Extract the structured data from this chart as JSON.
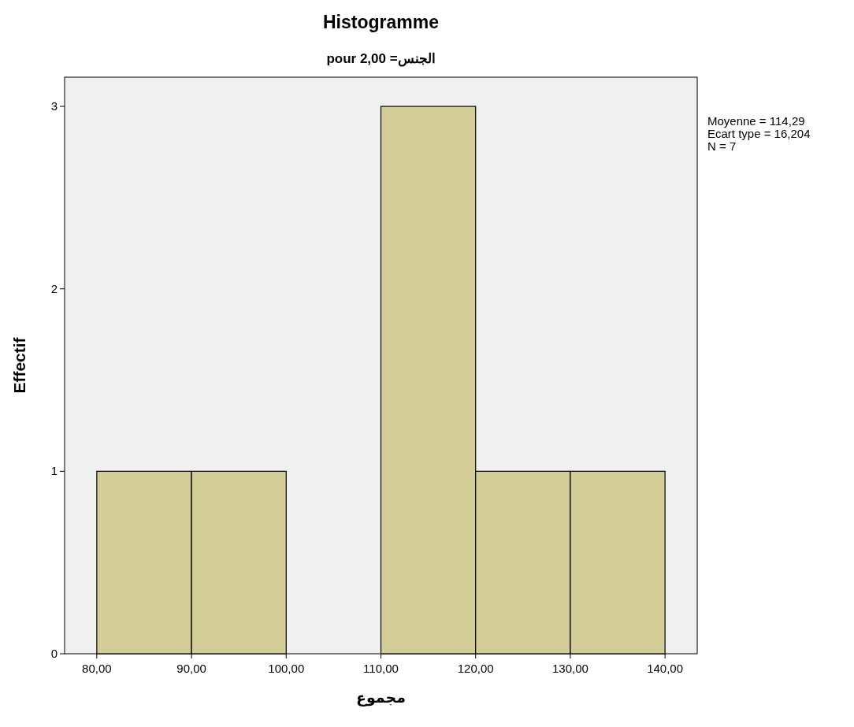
{
  "chart_data": {
    "type": "histogram",
    "title": "Histogramme",
    "subtitle": "pour الجنس= 2,00",
    "xlabel": "مجموع",
    "ylabel": "Effectif",
    "bins": [
      80,
      90,
      100,
      110,
      120,
      130,
      140
    ],
    "values": [
      1,
      1,
      0,
      3,
      1,
      1
    ],
    "color": "#d3ce97",
    "xlim": [
      76.6,
      143.4
    ],
    "ylim": [
      0,
      3.16
    ],
    "xticks": [
      {
        "value": 80,
        "label": "80,00"
      },
      {
        "value": 90,
        "label": "90,00"
      },
      {
        "value": 100,
        "label": "100,00"
      },
      {
        "value": 110,
        "label": "110,00"
      },
      {
        "value": 120,
        "label": "120,00"
      },
      {
        "value": 130,
        "label": "130,00"
      },
      {
        "value": 140,
        "label": "140,00"
      }
    ],
    "yticks": [
      0,
      1,
      2,
      3
    ],
    "annotations": [
      "Moyenne = 114,29",
      "Ecart type = 16,204",
      "N = 7"
    ]
  }
}
